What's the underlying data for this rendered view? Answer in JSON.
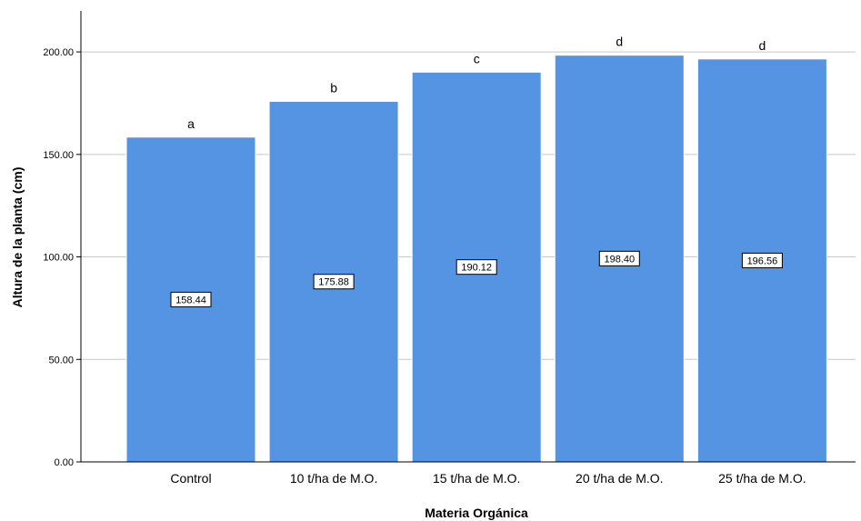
{
  "chart_data": {
    "type": "bar",
    "categories": [
      "Control",
      "10 t/ha de M.O.",
      "15 t/ha de M.O.",
      "20 t/ha de M.O.",
      "25 t/ha de M.O."
    ],
    "values": [
      158.44,
      175.88,
      190.12,
      198.4,
      196.56
    ],
    "value_labels": [
      "158.44",
      "175.88",
      "190.12",
      "198.40",
      "196.56"
    ],
    "significance_letters": [
      "a",
      "b",
      "c",
      "d",
      "d"
    ],
    "xlabel": "Materia Orgánica",
    "ylabel": "Altura de la planta (cm)",
    "ylim": [
      0,
      220
    ],
    "yticks": [
      0,
      50,
      100,
      150,
      200
    ],
    "ytick_labels": [
      "0.00",
      "50.00",
      "100.00",
      "150.00",
      "200.00"
    ],
    "grid": "horizontal",
    "bar_color": "#5593e3",
    "bar_edge_color": "#ffffff",
    "grid_color": "#c8c8c8"
  }
}
